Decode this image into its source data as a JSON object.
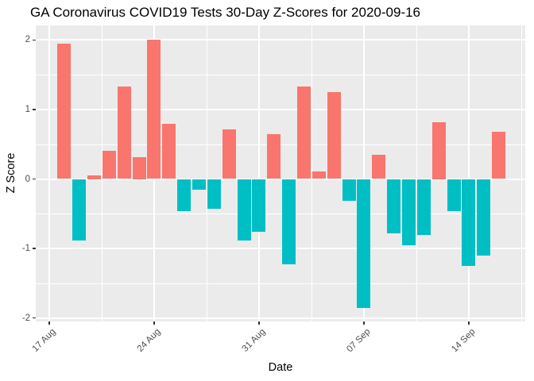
{
  "title": "GA Coronavirus COVID19 Tests 30-Day Z-Scores for 2020-09-16",
  "chart_data": {
    "type": "bar",
    "title": "GA Coronavirus COVID19 Tests 30-Day Z-Scores for 2020-09-16",
    "xlabel": "Date",
    "ylabel": "Z Score",
    "categories": [
      "18 Aug",
      "19 Aug",
      "20 Aug",
      "21 Aug",
      "22 Aug",
      "23 Aug",
      "24 Aug",
      "25 Aug",
      "26 Aug",
      "27 Aug",
      "28 Aug",
      "29 Aug",
      "30 Aug",
      "31 Aug",
      "01 Sep",
      "02 Sep",
      "03 Sep",
      "04 Sep",
      "05 Sep",
      "06 Sep",
      "07 Sep",
      "08 Sep",
      "09 Sep",
      "10 Sep",
      "11 Sep",
      "12 Sep",
      "13 Sep",
      "14 Sep",
      "15 Sep",
      "16 Sep"
    ],
    "values": [
      1.95,
      -0.88,
      0.05,
      0.4,
      1.33,
      0.31,
      2.01,
      0.79,
      -0.46,
      -0.15,
      -0.43,
      0.71,
      -0.89,
      -0.76,
      0.65,
      -1.23,
      1.33,
      0.11,
      1.25,
      -0.31,
      -1.86,
      0.35,
      -0.78,
      -0.95,
      -0.8,
      0.82,
      -0.46,
      -1.25,
      -1.1,
      0.68
    ],
    "x_tick_labels": [
      "17 Aug",
      "24 Aug",
      "31 Aug",
      "07 Sep",
      "14 Sep"
    ],
    "x_tick_days": [
      0,
      7,
      14,
      21,
      28
    ],
    "y_tick_labels": [
      "2",
      "1",
      "0",
      "-1",
      "-2"
    ],
    "y_ticks": [
      2,
      1,
      0,
      -1,
      -2
    ],
    "y_minor_ticks": [
      1.5,
      0.5,
      -0.5,
      -1.5
    ],
    "x_minor_days": [
      3.5,
      10.5,
      17.5,
      24.5,
      31.5
    ],
    "ylim": [
      -2.05,
      2.21
    ],
    "grid": "on",
    "legend": "none",
    "colors": {
      "positive_bar": "#F8766D",
      "negative_bar": "#00BFC4",
      "panel_background": "#EBEBEB",
      "gridline": "#FFFFFF",
      "tick_text": "#4D4D4D",
      "axis_title_text": "#000000",
      "title_text": "#000000"
    }
  }
}
